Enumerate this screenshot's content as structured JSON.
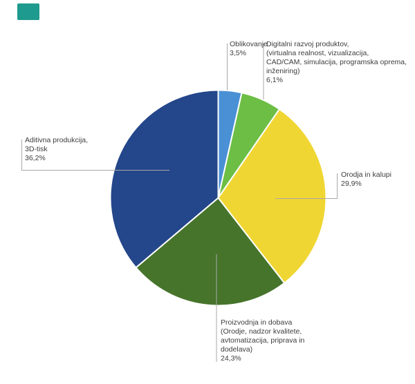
{
  "page": {
    "background": "#FFFFFF",
    "text_color": "#3C3C3C"
  },
  "corner_marker": {
    "color": "#1F9A8E"
  },
  "chart_data": {
    "type": "pie",
    "title": "",
    "unit": "%",
    "direction": "clockwise",
    "start_angle_deg": 0,
    "legend_position": "callout-labels",
    "leader_line_color": "#A8A8A8",
    "slices": [
      {
        "key": "oblikovanje",
        "label": "Oblikovanje",
        "value": 3.5,
        "display_value": "3,5%",
        "color": "#4A90D5"
      },
      {
        "key": "digitalni-razvoj-produktov",
        "label": "Digitalni razvoj produktov, (virtualna realnost, vizualizacija, CAD/CAM, simulacija, programska oprema, inženiring)",
        "value": 6.1,
        "display_value": "6,1%",
        "color": "#6CBE45"
      },
      {
        "key": "orodja-in-kalupi",
        "label": "Orodja in kalupi",
        "value": 29.9,
        "display_value": "29,9%",
        "color": "#F0D632"
      },
      {
        "key": "proizvodnja-in-dobava",
        "label": "Proizvodnja in dobava (Orodje, nadzor kvalitete, avtomatizacija, priprava in dodelava)",
        "value": 24.3,
        "display_value": "24,3%",
        "color": "#46742B"
      },
      {
        "key": "aditivna-produkcija-3d-tisk",
        "label": "Aditivna produkcija, 3D-tisk",
        "value": 36.2,
        "display_value": "36,2%",
        "color": "#24468A"
      }
    ]
  },
  "labels": {
    "oblikovanje": {
      "lines": [
        "Oblikovanje",
        "3,5%"
      ]
    },
    "digitalni": {
      "lines": [
        "Digitalni razvoj produktov,",
        "(virtualna realnost, vizualizacija,",
        "CAD/CAM, simulacija, programska oprema,",
        "inženiring)",
        "6,1%"
      ]
    },
    "orodja": {
      "lines": [
        "Orodja in kalupi",
        "29,9%"
      ]
    },
    "proizvodnja": {
      "lines": [
        "Proizvodnja in dobava",
        "(Orodje, nadzor kvalitete,",
        "avtomatizacija, priprava in",
        "dodelava)",
        "24,3%"
      ]
    },
    "aditivna": {
      "lines": [
        "Aditivna produkcija,",
        "3D-tisk",
        "36,2%"
      ]
    }
  }
}
